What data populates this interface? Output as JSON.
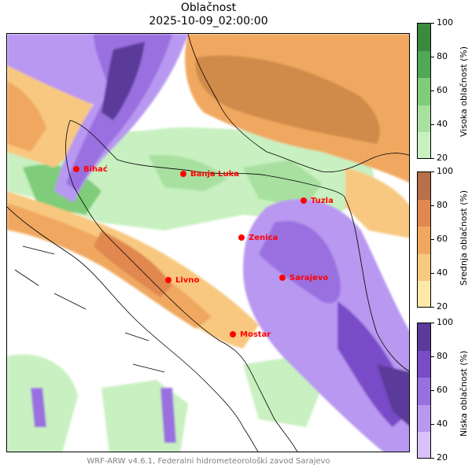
{
  "title": "Oblačnost",
  "subtitle": "2025-10-09_02:00:00",
  "footer": "WRF-ARW v4.6.1, Federalni hidrometeorološki zavod Sarajevo",
  "colorbars": [
    {
      "label": "Visoka oblačnost (%)",
      "ticks": [
        "100",
        "80",
        "60",
        "40",
        "20"
      ],
      "colors": [
        "#3a8a40",
        "#4ea854",
        "#7fcc7a",
        "#a8e0a0",
        "#c8f0c0"
      ]
    },
    {
      "label": "Srednja oblačnost (%)",
      "ticks": [
        "100",
        "80",
        "60",
        "40",
        "20"
      ],
      "colors": [
        "#b8704a",
        "#e08850",
        "#f0a860",
        "#f8c880",
        "#fde8a8"
      ]
    },
    {
      "label": "Niska oblačnost (%)",
      "ticks": [
        "100",
        "80",
        "60",
        "40",
        "20"
      ],
      "colors": [
        "#5a3a9a",
        "#7a4cc8",
        "#9a70e0",
        "#b898f0",
        "#d8c0fa"
      ]
    }
  ],
  "cities": [
    {
      "name": "Bihać"
    },
    {
      "name": "Banja Luka"
    },
    {
      "name": "Tuzla"
    },
    {
      "name": "Zenica"
    },
    {
      "name": "Livno"
    },
    {
      "name": "Sarajevo"
    },
    {
      "name": "Mostar"
    }
  ]
}
